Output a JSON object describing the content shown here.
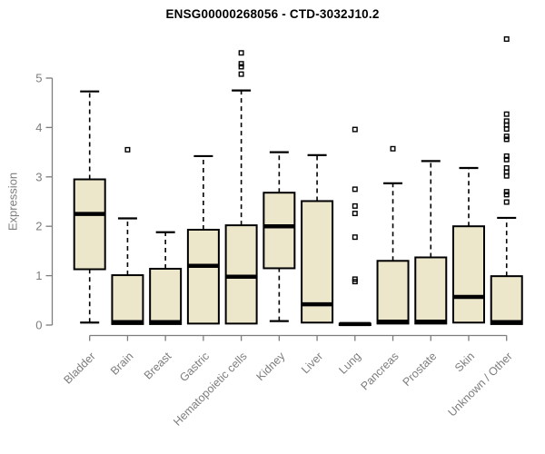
{
  "page": {
    "background": "#ffffff"
  },
  "chart_data": {
    "type": "boxplot",
    "title": "ENSG00000268056 - CTD-3032J10.2",
    "ylabel": "Expression",
    "xlabel": "",
    "yticks": [
      0,
      1,
      2,
      3,
      4,
      5
    ],
    "ylim": [
      0,
      5.95
    ],
    "grid": false,
    "legend": "none",
    "colors": {
      "box_fill": "#ECE6CB",
      "box_stroke": "#000000",
      "median": "#000000",
      "whisker": "#000000",
      "outlier": "#000000",
      "axis": "#7d7d7d",
      "title": "#000000"
    },
    "categories": [
      "Bladder",
      "Brain",
      "Breast",
      "Gastric",
      "Hematopoietic cells",
      "Kidney",
      "Liver",
      "Lung",
      "Pancreas",
      "Prostate",
      "Skin",
      "Unknown / Other"
    ],
    "series": [
      {
        "name": "Bladder",
        "min": 0.05,
        "q1": 1.13,
        "median": 2.25,
        "q3": 2.95,
        "max": 4.73,
        "outliers": []
      },
      {
        "name": "Brain",
        "min": 0.02,
        "q1": 0.02,
        "median": 0.06,
        "q3": 1.01,
        "max": 2.16,
        "outliers": [
          3.55
        ]
      },
      {
        "name": "Breast",
        "min": 0.02,
        "q1": 0.02,
        "median": 0.06,
        "q3": 1.14,
        "max": 1.88,
        "outliers": []
      },
      {
        "name": "Gastric",
        "min": 0.03,
        "q1": 0.03,
        "median": 1.2,
        "q3": 1.93,
        "max": 3.42,
        "outliers": []
      },
      {
        "name": "Hematopoietic cells",
        "min": 0.03,
        "q1": 0.03,
        "median": 0.98,
        "q3": 2.02,
        "max": 4.75,
        "outliers": [
          5.08,
          5.23,
          5.29,
          5.51
        ]
      },
      {
        "name": "Kidney",
        "min": 0.08,
        "q1": 1.15,
        "median": 2.0,
        "q3": 2.68,
        "max": 3.5,
        "outliers": []
      },
      {
        "name": "Liver",
        "min": 0.05,
        "q1": 0.05,
        "median": 0.42,
        "q3": 2.51,
        "max": 3.44,
        "outliers": []
      },
      {
        "name": "Lung",
        "min": 0.0,
        "q1": 0.0,
        "median": 0.02,
        "q3": 0.03,
        "max": 0.03,
        "outliers": [
          0.88,
          0.93,
          1.78,
          2.26,
          2.41,
          2.75,
          3.96
        ]
      },
      {
        "name": "Pancreas",
        "min": 0.03,
        "q1": 0.03,
        "median": 0.07,
        "q3": 1.3,
        "max": 2.87,
        "outliers": [
          3.57
        ]
      },
      {
        "name": "Prostate",
        "min": 0.03,
        "q1": 0.03,
        "median": 0.07,
        "q3": 1.37,
        "max": 3.32,
        "outliers": []
      },
      {
        "name": "Skin",
        "min": 0.05,
        "q1": 0.05,
        "median": 0.57,
        "q3": 2.0,
        "max": 3.18,
        "outliers": []
      },
      {
        "name": "Unknown / Other",
        "min": 0.02,
        "q1": 0.02,
        "median": 0.06,
        "q3": 0.99,
        "max": 2.17,
        "outliers": [
          2.49,
          2.64,
          2.7,
          3.02,
          3.1,
          3.18,
          3.35,
          3.42,
          3.76,
          3.82,
          3.97,
          4.05,
          4.13,
          4.27,
          5.79
        ]
      }
    ]
  }
}
